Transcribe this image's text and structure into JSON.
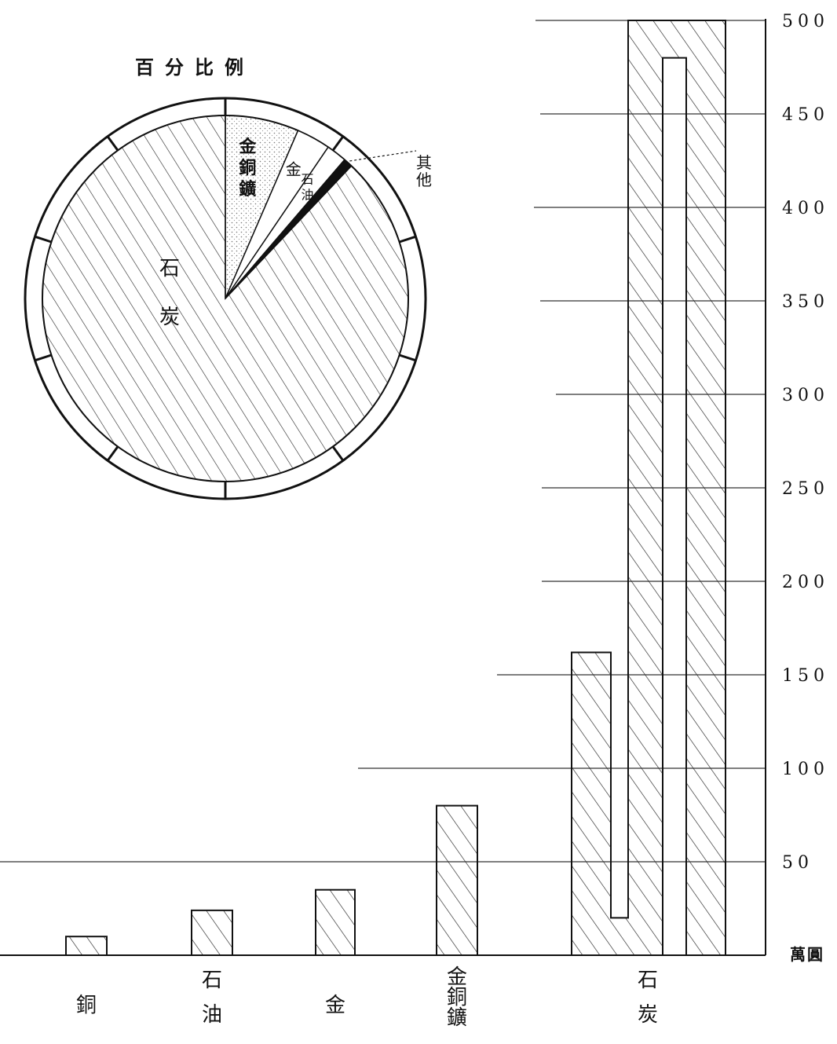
{
  "chart_data": [
    {
      "type": "bar",
      "title": "",
      "unit_label": "萬圓",
      "categories": [
        {
          "lines": [
            "銅"
          ],
          "value": 10
        },
        {
          "lines": [
            "石",
            "油"
          ],
          "value": 24
        },
        {
          "lines": [
            "金"
          ],
          "value": 35
        },
        {
          "lines": [
            "金",
            "銅",
            "鑛"
          ],
          "value": 80
        },
        {
          "lines": [
            "石",
            "炭"
          ],
          "value": 1150
        }
      ],
      "yticks": [
        50,
        100,
        150,
        200,
        250,
        300,
        350,
        400,
        450,
        500
      ],
      "ylim": [
        0,
        500
      ],
      "grid": true,
      "axis_side": "right",
      "note": ""
    },
    {
      "type": "pie",
      "title": "百分比例",
      "slices": [
        {
          "lines": [
            "金",
            "銅",
            "鑛"
          ],
          "value": 6.5,
          "fill": "stipple"
        },
        {
          "lines": [
            "金"
          ],
          "value": 3.0,
          "fill": "blank"
        },
        {
          "lines": [
            "石",
            "油"
          ],
          "value": 1.8,
          "fill": "blank"
        },
        {
          "lines": [
            "其",
            "他"
          ],
          "value": 0.8,
          "fill": "solid"
        },
        {
          "lines": [
            "石",
            "炭"
          ],
          "value": 87.9,
          "fill": "hatch"
        }
      ]
    }
  ]
}
